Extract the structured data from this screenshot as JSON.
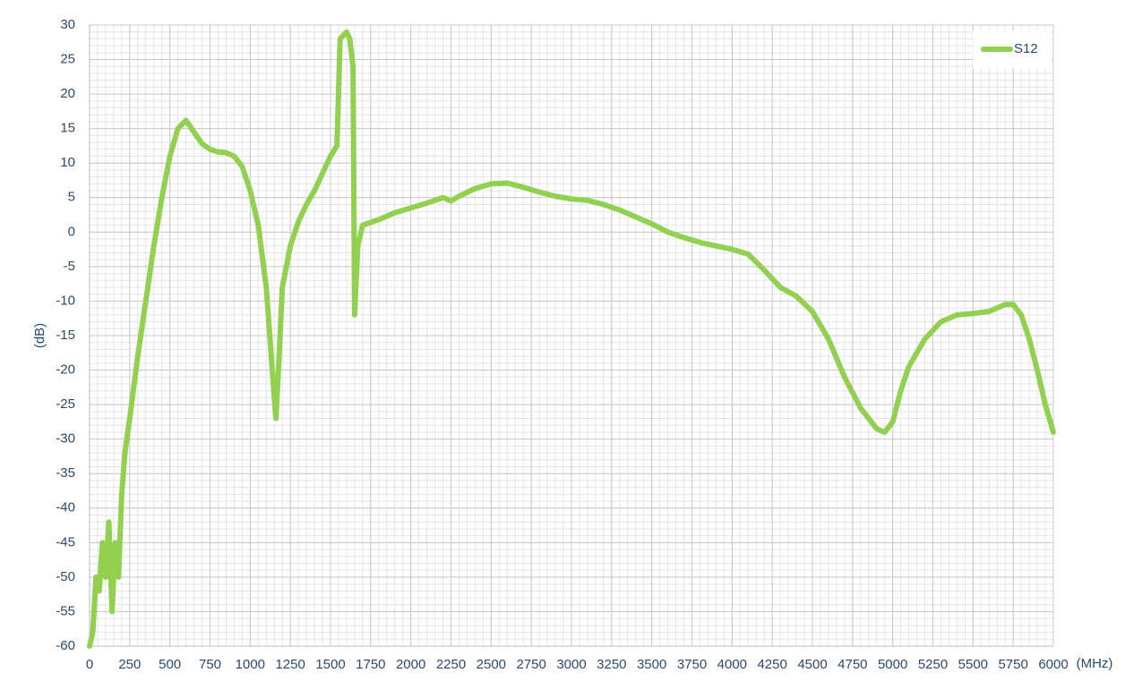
{
  "chart_data": {
    "type": "line",
    "x_label": "(MHz)",
    "y_label": "(dB)",
    "xlim": [
      0,
      6000
    ],
    "ylim": [
      -60,
      30
    ],
    "xticks": [
      0,
      250,
      500,
      750,
      1000,
      1250,
      1500,
      1750,
      2000,
      2250,
      2500,
      2750,
      3000,
      3250,
      3500,
      3750,
      4000,
      4250,
      4500,
      4750,
      5000,
      5250,
      5500,
      5750,
      6000
    ],
    "yticks": [
      -60,
      -55,
      -50,
      -45,
      -40,
      -35,
      -30,
      -25,
      -20,
      -15,
      -10,
      -5,
      0,
      5,
      10,
      15,
      20,
      25,
      30
    ],
    "grid": true,
    "minor_grid": {
      "x": 50,
      "y": 1
    },
    "legend": "top-right",
    "series": [
      {
        "name": "S12",
        "color": "#92d050",
        "x": [
          0,
          20,
          40,
          60,
          80,
          100,
          120,
          140,
          160,
          180,
          200,
          220,
          250,
          300,
          350,
          400,
          450,
          500,
          550,
          600,
          650,
          700,
          750,
          800,
          850,
          900,
          950,
          1000,
          1050,
          1100,
          1150,
          1160,
          1180,
          1200,
          1250,
          1300,
          1350,
          1400,
          1450,
          1500,
          1540,
          1560,
          1600,
          1620,
          1640,
          1650,
          1670,
          1700,
          1800,
          1900,
          2000,
          2100,
          2200,
          2250,
          2300,
          2400,
          2500,
          2600,
          2700,
          2800,
          2900,
          3000,
          3100,
          3200,
          3300,
          3400,
          3500,
          3600,
          3700,
          3800,
          3900,
          4000,
          4100,
          4200,
          4300,
          4400,
          4500,
          4600,
          4700,
          4800,
          4900,
          4950,
          5000,
          5050,
          5100,
          5200,
          5300,
          5400,
          5500,
          5600,
          5700,
          5750,
          5800,
          5850,
          5900,
          5950,
          6000
        ],
        "values": [
          -60,
          -58,
          -50,
          -52,
          -45,
          -50,
          -42,
          -55,
          -45,
          -50,
          -38,
          -32,
          -27,
          -18,
          -10,
          -2,
          5,
          11,
          15,
          16.2,
          14.5,
          12.8,
          12,
          11.6,
          11.5,
          11,
          9.5,
          6,
          1,
          -8,
          -24,
          -27,
          -18,
          -8,
          -2,
          1.5,
          4,
          6,
          8.5,
          11,
          12.5,
          28,
          29,
          28,
          24,
          -12,
          -2,
          1,
          1.8,
          2.8,
          3.5,
          4.2,
          5,
          4.5,
          5.2,
          6.3,
          7,
          7.1,
          6.5,
          5.8,
          5.2,
          4.8,
          4.6,
          4,
          3.2,
          2.2,
          1.2,
          0,
          -0.8,
          -1.5,
          -2,
          -2.5,
          -3.2,
          -5.5,
          -8,
          -9.3,
          -11.5,
          -15.5,
          -21,
          -25.5,
          -28.5,
          -29,
          -27.5,
          -23,
          -19.5,
          -15.5,
          -13,
          -12,
          -11.8,
          -11.5,
          -10.5,
          -10.5,
          -12,
          -15.5,
          -20,
          -25,
          -29
        ]
      }
    ]
  }
}
